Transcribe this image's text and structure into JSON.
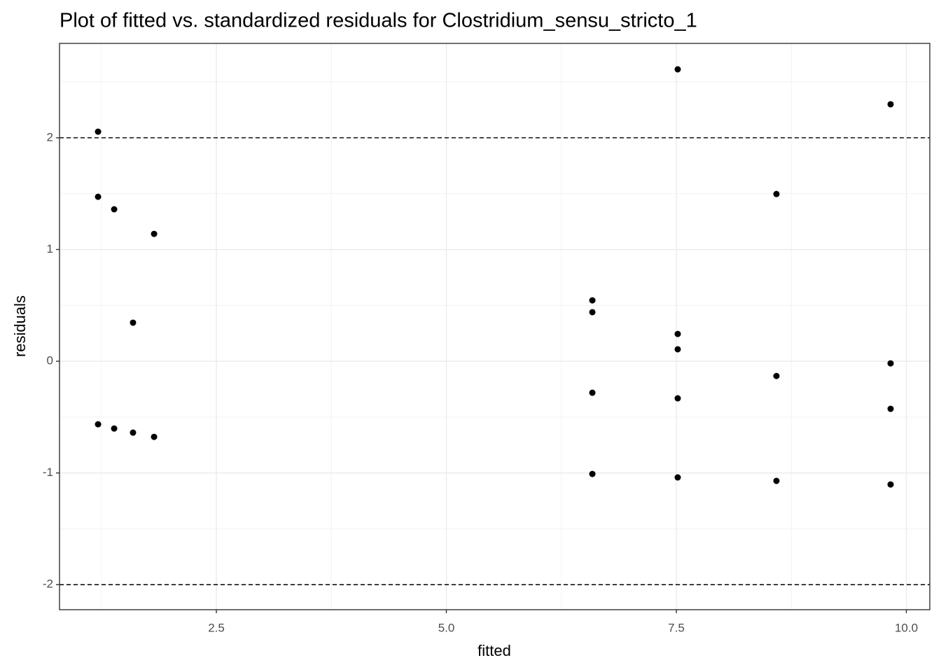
{
  "chart_data": {
    "type": "scatter",
    "title": "Plot of fitted vs. standardized residuals for Clostridium_sensu_stricto_1",
    "xlabel": "fitted",
    "ylabel": "residuals",
    "x": [
      1.214,
      1.214,
      1.389,
      1.823,
      1.594,
      1.214,
      1.389,
      1.594,
      1.823,
      7.515,
      9.829,
      8.588,
      6.587,
      6.587,
      7.515,
      7.515,
      9.829,
      8.588,
      6.587,
      7.515,
      9.829,
      6.587,
      7.515,
      8.588,
      9.829
    ],
    "values": [
      2.055,
      1.472,
      1.36,
      1.14,
      0.345,
      -0.564,
      -0.602,
      -0.639,
      -0.677,
      2.613,
      2.3,
      1.497,
      0.545,
      0.439,
      0.244,
      0.107,
      -0.019,
      -0.132,
      -0.282,
      -0.332,
      -0.426,
      -1.009,
      -1.04,
      -1.071,
      -1.103
    ],
    "color": "#000000",
    "xlim": [
      0.795,
      10.255
    ],
    "ylim": [
      -2.224,
      2.845
    ],
    "xticks": [
      2.5,
      {
        "value": 5,
        "label": "5.0"
      },
      7.5,
      {
        "value": 10,
        "label": "10.0"
      }
    ],
    "yticks": [
      -2,
      -1,
      0,
      1,
      2
    ],
    "x_minor_grid": [
      1.25,
      3.75,
      6.25,
      8.75
    ],
    "y_minor_grid": [
      -1.5,
      -0.5,
      0.5,
      1.5,
      2.5
    ],
    "hlines": [
      2,
      -2
    ],
    "grid": true
  }
}
